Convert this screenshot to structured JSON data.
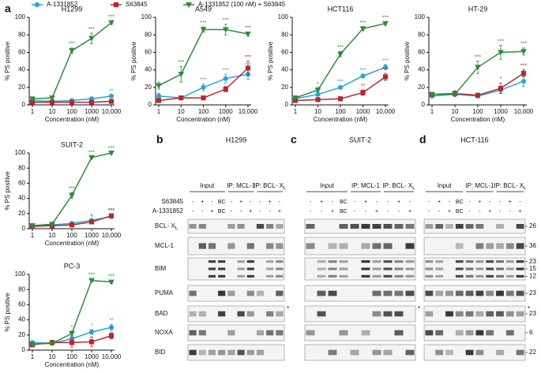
{
  "panel_labels": [
    "a",
    "b",
    "c",
    "d"
  ],
  "chart_data": [
    {
      "type": "line",
      "title": "H1299",
      "xlabel": "Concentration (nM)",
      "ylabel": "% PS positive",
      "xscale": "log",
      "x": [
        1,
        10,
        100,
        1000,
        10000
      ],
      "xlim": [
        1,
        10000
      ],
      "xticks": [
        1,
        10,
        100,
        1000,
        {
          "value": 10000,
          "label": "10,000"
        }
      ],
      "ylim": [
        0,
        100
      ],
      "yticks": [
        0,
        20,
        40,
        60,
        80,
        100
      ],
      "series": [
        {
          "name": "A-1331852",
          "color": "#29a3dc",
          "marker": "circle",
          "values": [
            5,
            4,
            5,
            7,
            10
          ],
          "errors": [
            1,
            1,
            1,
            1,
            1
          ],
          "stars": [
            null,
            null,
            null,
            null,
            "**"
          ]
        },
        {
          "name": "S63845",
          "color": "#b5282e",
          "marker": "square",
          "values": [
            3,
            3,
            3,
            3,
            4
          ],
          "errors": [
            1,
            1,
            1,
            1,
            1
          ],
          "stars": [
            null,
            null,
            null,
            null,
            null
          ]
        },
        {
          "name": "A-1331852 (100 nM) + S63845",
          "color": "#2e8b3a",
          "marker": "triangle-down",
          "values": [
            7,
            8,
            62,
            76,
            94
          ],
          "errors": [
            1,
            1,
            3,
            6,
            2
          ],
          "stars": [
            null,
            null,
            "***",
            "***",
            "***"
          ]
        }
      ]
    },
    {
      "type": "line",
      "title": "A549",
      "xlabel": "Concentration (nM)",
      "ylabel": "% PS positive",
      "xscale": "log",
      "x": [
        1,
        10,
        100,
        1000,
        10000
      ],
      "xlim": [
        1,
        10000
      ],
      "xticks": [
        1,
        10,
        100,
        1000,
        {
          "value": 10000,
          "label": "10,000"
        }
      ],
      "ylim": [
        0,
        100
      ],
      "yticks": [
        0,
        20,
        40,
        60,
        80,
        100
      ],
      "series": [
        {
          "name": "A-1331852",
          "color": "#29a3dc",
          "marker": "circle",
          "values": [
            10,
            8,
            20,
            30,
            35
          ],
          "errors": [
            3,
            2,
            4,
            5,
            6
          ],
          "stars": [
            null,
            null,
            "***",
            "***",
            "***"
          ]
        },
        {
          "name": "S63845",
          "color": "#b5282e",
          "marker": "square",
          "values": [
            5,
            8,
            8,
            18,
            42
          ],
          "errors": [
            2,
            2,
            2,
            3,
            8
          ],
          "stars": [
            null,
            null,
            null,
            null,
            "***"
          ]
        },
        {
          "name": "A-1331852 (100 nM) + S63845",
          "color": "#2e8b3a",
          "marker": "triangle-down",
          "values": [
            22,
            35,
            86,
            86,
            81
          ],
          "errors": [
            4,
            9,
            3,
            6,
            2
          ],
          "stars": [
            null,
            "***",
            "***",
            "***",
            "***"
          ]
        }
      ]
    },
    {
      "type": "line",
      "title": "HCT116",
      "xlabel": "Concentration (nM)",
      "ylabel": "% PS positive",
      "xscale": "log",
      "x": [
        1,
        10,
        100,
        1000,
        10000
      ],
      "xlim": [
        1,
        10000
      ],
      "xticks": [
        1,
        10,
        100,
        1000,
        {
          "value": 10000,
          "label": "10,000"
        }
      ],
      "ylim": [
        0,
        100
      ],
      "yticks": [
        0,
        20,
        40,
        60,
        80,
        100
      ],
      "series": [
        {
          "name": "A-1331852",
          "color": "#29a3dc",
          "marker": "circle",
          "values": [
            7,
            12,
            20,
            33,
            43
          ],
          "errors": [
            1,
            2,
            2,
            2,
            3
          ],
          "stars": [
            null,
            "*",
            "***",
            "***",
            "***"
          ]
        },
        {
          "name": "S63845",
          "color": "#b5282e",
          "marker": "square",
          "values": [
            5,
            6,
            7,
            14,
            32
          ],
          "errors": [
            1,
            1,
            1,
            3,
            4
          ],
          "stars": [
            null,
            null,
            null,
            "**",
            "***"
          ]
        },
        {
          "name": "A-1331852 (100 nM) + S63845",
          "color": "#2e8b3a",
          "marker": "triangle-down",
          "values": [
            8,
            17,
            58,
            87,
            93
          ],
          "errors": [
            1,
            2,
            3,
            2,
            2
          ],
          "stars": [
            null,
            "*",
            "***",
            "***",
            "***"
          ]
        }
      ]
    },
    {
      "type": "line",
      "title": "HT-29",
      "xlabel": "Concentration (nM)",
      "ylabel": "% PS positive",
      "xscale": "log",
      "x": [
        1,
        10,
        100,
        1000,
        10000
      ],
      "xlim": [
        1,
        10000
      ],
      "xticks": [
        1,
        10,
        100,
        1000,
        {
          "value": 10000,
          "label": "10,000"
        }
      ],
      "ylim": [
        0,
        100
      ],
      "yticks": [
        0,
        20,
        40,
        60,
        80,
        100
      ],
      "series": [
        {
          "name": "A-1331852",
          "color": "#29a3dc",
          "marker": "circle",
          "values": [
            10,
            12,
            10,
            17,
            27
          ],
          "errors": [
            2,
            2,
            2,
            4,
            6
          ],
          "stars": [
            null,
            null,
            null,
            null,
            "*"
          ]
        },
        {
          "name": "S63845",
          "color": "#b5282e",
          "marker": "square",
          "values": [
            12,
            13,
            11,
            19,
            36
          ],
          "errors": [
            2,
            3,
            2,
            6,
            4
          ],
          "stars": [
            null,
            null,
            null,
            "*",
            "***"
          ]
        },
        {
          "name": "A-1331852 (100 nM) + S63845",
          "color": "#2e8b3a",
          "marker": "triangle-down",
          "values": [
            12,
            12,
            43,
            60,
            61
          ],
          "errors": [
            2,
            2,
            7,
            8,
            4
          ],
          "stars": [
            null,
            null,
            "***",
            "***",
            "***"
          ]
        }
      ]
    },
    {
      "type": "line",
      "title": "SUIT-2",
      "xlabel": "Concentration (nM)",
      "ylabel": "% PS positive",
      "xscale": "log",
      "x": [
        1,
        10,
        100,
        1000,
        10000
      ],
      "xlim": [
        1,
        10000
      ],
      "xticks": [
        1,
        10,
        100,
        1000,
        {
          "value": 10000,
          "label": "10,000"
        }
      ],
      "ylim": [
        0,
        100
      ],
      "yticks": [
        0,
        20,
        40,
        60,
        80,
        100
      ],
      "series": [
        {
          "name": "A-1331852",
          "color": "#29a3dc",
          "marker": "circle",
          "values": [
            4,
            5,
            7,
            11,
            16
          ],
          "errors": [
            1,
            1,
            1,
            1,
            2
          ],
          "stars": [
            null,
            null,
            null,
            "*",
            "***"
          ]
        },
        {
          "name": "S63845",
          "color": "#b5282e",
          "marker": "square",
          "values": [
            3,
            4,
            5,
            9,
            17
          ],
          "errors": [
            1,
            1,
            1,
            1,
            2
          ],
          "stars": [
            null,
            null,
            null,
            "*",
            "***"
          ]
        },
        {
          "name": "A-1331852 (100 nM) + S63845",
          "color": "#2e8b3a",
          "marker": "triangle-down",
          "values": [
            4,
            6,
            44,
            94,
            100
          ],
          "errors": [
            1,
            1,
            4,
            1,
            1
          ],
          "stars": [
            null,
            null,
            "***",
            "***",
            "***"
          ]
        }
      ]
    },
    {
      "type": "line",
      "title": "PC-3",
      "xlabel": "Concentration (nM)",
      "ylabel": "% PS positive",
      "xscale": "log",
      "x": [
        1,
        10,
        100,
        1000,
        10000
      ],
      "xlim": [
        1,
        10000
      ],
      "xticks": [
        1,
        10,
        100,
        1000,
        {
          "value": 10000,
          "label": "10,000"
        }
      ],
      "ylim": [
        0,
        100
      ],
      "yticks": [
        0,
        20,
        40,
        60,
        80,
        100
      ],
      "series": [
        {
          "name": "A-1331852",
          "color": "#29a3dc",
          "marker": "circle",
          "values": [
            10,
            9,
            15,
            24,
            30
          ],
          "errors": [
            2,
            2,
            3,
            3,
            4
          ],
          "stars": [
            null,
            null,
            "**",
            "*",
            "**"
          ]
        },
        {
          "name": "S63845",
          "color": "#b5282e",
          "marker": "square",
          "values": [
            7,
            10,
            10,
            11,
            19
          ],
          "errors": [
            2,
            3,
            6,
            6,
            4
          ],
          "stars": [
            null,
            null,
            null,
            null,
            "*"
          ]
        },
        {
          "name": "A-1331852 (100 nM) + S63845",
          "color": "#2e8b3a",
          "marker": "triangle-down",
          "values": [
            8,
            9,
            22,
            92,
            90
          ],
          "errors": [
            2,
            2,
            3,
            2,
            2
          ],
          "stars": [
            null,
            null,
            "*",
            "***",
            "***"
          ]
        }
      ]
    }
  ],
  "blots": {
    "treatments": [
      "S63845",
      "A-1331852"
    ],
    "rows": [
      {
        "text": "BCL- X",
        "sub": "L"
      },
      {
        "text": "MCL-1"
      },
      {
        "text": "BIM"
      },
      {
        "text": "PUMA"
      },
      {
        "text": "BAD"
      },
      {
        "text": "NOXA"
      },
      {
        "text": "BID"
      }
    ],
    "mw": [
      [
        26
      ],
      [
        36
      ],
      [
        23,
        15,
        12
      ],
      [
        23
      ],
      [
        23
      ],
      [
        6
      ],
      [
        22
      ]
    ],
    "asterisk": "*",
    "panels": [
      {
        "title": "H1299",
        "input": "Input",
        "ip1": "IP: MCL-1",
        "ip2": {
          "text": "IP: BCL- X",
          "sub": "L"
        },
        "s63845": [
          "-",
          "+",
          "-",
          "BC",
          "-",
          "+",
          "-",
          "-",
          "+",
          "-"
        ],
        "a1331852": [
          "-",
          "-",
          "+",
          "BC",
          "-",
          "-",
          "+",
          "-",
          "-",
          "+"
        ]
      },
      {
        "title": "SUIT-2",
        "input": "Input",
        "ip1": "IP: MCL-1",
        "ip2": {
          "text": "IP: BCL- X",
          "sub": "L"
        },
        "s63845": [
          "-",
          "+",
          "-",
          "BC",
          "-",
          "+",
          "-",
          "-",
          "+",
          "-"
        ],
        "a1331852": [
          "-",
          "-",
          "+",
          "BC",
          "-",
          "-",
          "+",
          "-",
          "-",
          "+"
        ]
      },
      {
        "title": "HCT-116",
        "input": "Input",
        "ip1": "IP: MCL-1",
        "ip2": {
          "text": "IP: BCL- X",
          "sub": "L"
        },
        "s63845": [
          "-",
          "+",
          "-",
          "BC",
          "-",
          "+",
          "-",
          "-",
          "+",
          "-"
        ],
        "a1331852": [
          "-",
          "-",
          "+",
          "BC",
          "-",
          "-",
          "+",
          "-",
          "-",
          "+"
        ]
      }
    ]
  }
}
